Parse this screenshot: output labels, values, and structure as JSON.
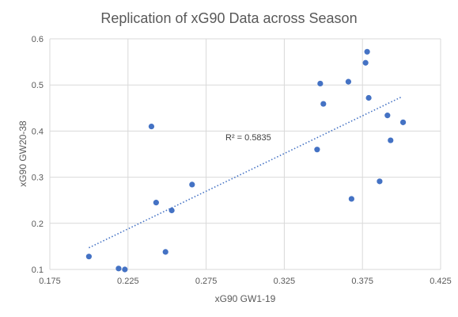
{
  "chart_data": {
    "type": "scatter",
    "title": "Replication of xG90 Data across Season",
    "xlabel": "xG90 GW1-19",
    "ylabel": "xG90 GW20-38",
    "xlim": [
      0.175,
      0.425
    ],
    "ylim": [
      0.1,
      0.6
    ],
    "x_ticks": [
      "0.175",
      "0.225",
      "0.275",
      "0.325",
      "0.375",
      "0.425"
    ],
    "y_ticks": [
      "0.1",
      "0.2",
      "0.3",
      "0.4",
      "0.5",
      "0.6"
    ],
    "grid": true,
    "legend": "none",
    "marker_color": "#4472C4",
    "trendline": {
      "style": "dotted linear",
      "label": "R² = 0.5835",
      "from": [
        0.2,
        0.147
      ],
      "to": [
        0.4,
        0.474
      ]
    },
    "points": [
      {
        "x": 0.2,
        "y": 0.128
      },
      {
        "x": 0.219,
        "y": 0.102
      },
      {
        "x": 0.223,
        "y": 0.1
      },
      {
        "x": 0.24,
        "y": 0.41
      },
      {
        "x": 0.243,
        "y": 0.245
      },
      {
        "x": 0.249,
        "y": 0.138
      },
      {
        "x": 0.253,
        "y": 0.228
      },
      {
        "x": 0.266,
        "y": 0.284
      },
      {
        "x": 0.346,
        "y": 0.36
      },
      {
        "x": 0.348,
        "y": 0.503
      },
      {
        "x": 0.35,
        "y": 0.459
      },
      {
        "x": 0.366,
        "y": 0.507
      },
      {
        "x": 0.368,
        "y": 0.253
      },
      {
        "x": 0.377,
        "y": 0.548
      },
      {
        "x": 0.378,
        "y": 0.572
      },
      {
        "x": 0.379,
        "y": 0.472
      },
      {
        "x": 0.386,
        "y": 0.291
      },
      {
        "x": 0.391,
        "y": 0.434
      },
      {
        "x": 0.393,
        "y": 0.38
      },
      {
        "x": 0.401,
        "y": 0.419
      }
    ]
  }
}
